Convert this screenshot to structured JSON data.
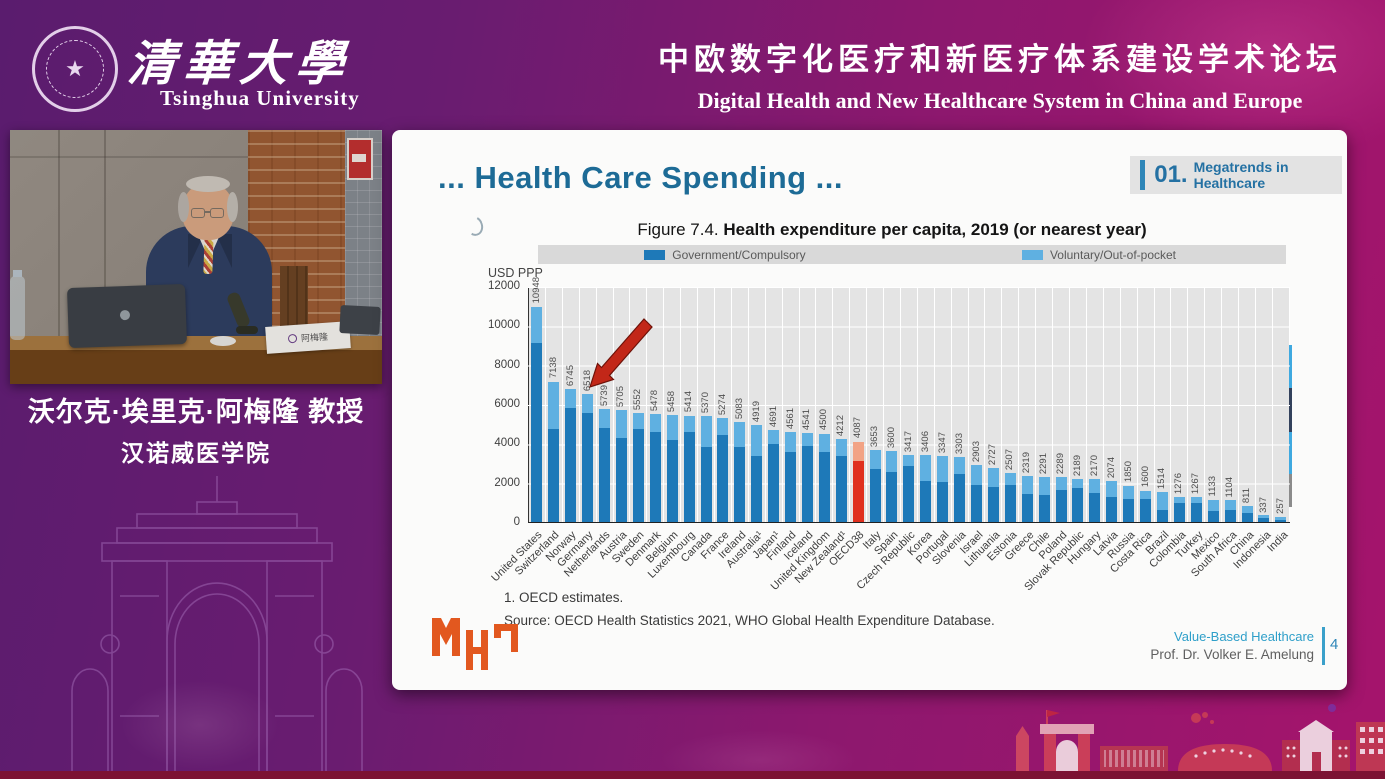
{
  "header": {
    "university_cn": "清華大學",
    "university_en": "Tsinghua University",
    "conference_cn": "中欧数字化医疗和新医疗体系建设学术论坛",
    "conference_en": "Digital Health and New Healthcare System in China and Europe"
  },
  "speaker": {
    "name_line1": "沃尔克·埃里克·阿梅隆 教授",
    "name_line2": "汉诺威医学院",
    "nameplate": "阿梅隆"
  },
  "slide": {
    "title": "... Health Care Spending ...",
    "section_badge": {
      "number": "01.",
      "label": "Megatrends in Healthcare"
    },
    "figure_title_prefix": "Figure 7.4.",
    "figure_title_main": " Health expenditure per capita, 2019 (or nearest year)",
    "footnote": "1. OECD estimates.",
    "source": "Source: OECD Health Statistics 2021, WHO Global Health Expenditure Database.",
    "footer_course": "Value-Based Healthcare",
    "footer_author": "Prof. Dr. Volker E. Amelung",
    "page_number": "4"
  },
  "chart_data": {
    "type": "bar",
    "stacked": true,
    "title": "Figure 7.4. Health expenditure per capita, 2019 (or nearest year)",
    "ylabel": "USD PPP",
    "ylim": [
      0,
      12000
    ],
    "yticks": [
      0,
      2000,
      4000,
      6000,
      8000,
      10000,
      12000
    ],
    "grid": true,
    "legend_position": "top",
    "legend": [
      {
        "label": "Government/Compulsory",
        "color": "#1e79b8"
      },
      {
        "label": "Voluntary/Out-of-pocket",
        "color": "#5fb0e1"
      }
    ],
    "highlight_category": "OECD38",
    "highlight_colors": {
      "government": "#e0301e",
      "voluntary": "#f2a385"
    },
    "annotation": "red arrow pointing at Netherlands bar",
    "categories": [
      "United States",
      "Switzerland",
      "Norway",
      "Germany",
      "Netherlands",
      "Austria",
      "Sweden",
      "Denmark",
      "Belgium",
      "Luxembourg",
      "Canada",
      "France",
      "Ireland",
      "Australia¹",
      "Japan¹",
      "Finland",
      "Iceland",
      "United Kingdom",
      "New Zealand¹",
      "OECD38",
      "Italy",
      "Spain",
      "Czech Republic",
      "Korea",
      "Portugal",
      "Slovenia",
      "Israel",
      "Lithuania",
      "Estonia",
      "Greece",
      "Chile",
      "Poland",
      "Slovak Republic",
      "Hungary",
      "Latvia",
      "Russia",
      "Costa Rica",
      "Brazil",
      "Colombia",
      "Turkey",
      "Mexico",
      "South Africa",
      "China",
      "Indonesia",
      "India"
    ],
    "totals": [
      10948,
      7138,
      6745,
      6518,
      5739,
      5705,
      5552,
      5478,
      5458,
      5414,
      5370,
      5274,
      5083,
      4919,
      4691,
      4561,
      4541,
      4500,
      4212,
      4087,
      3653,
      3600,
      3417,
      3406,
      3347,
      3303,
      2903,
      2727,
      2507,
      2319,
      2291,
      2289,
      2189,
      2170,
      2074,
      1850,
      1600,
      1514,
      1276,
      1267,
      1133,
      1104,
      811,
      337,
      257
    ],
    "series": [
      {
        "name": "Government/Compulsory",
        "values": [
          9100,
          4750,
          5780,
          5550,
          4770,
          4290,
          4730,
          4560,
          4190,
          4560,
          3790,
          4400,
          3810,
          3360,
          3990,
          3560,
          3870,
          3570,
          3350,
          3090,
          2700,
          2560,
          2840,
          2090,
          2030,
          2430,
          1880,
          1790,
          1890,
          1400,
          1380,
          1640,
          1750,
          1480,
          1270,
          1190,
          1180,
          610,
          970,
          990,
          560,
          600,
          450,
          190,
          90
        ]
      },
      {
        "name": "Voluntary/Out-of-pocket",
        "values": [
          1848,
          2388,
          965,
          968,
          969,
          1415,
          822,
          918,
          1268,
          854,
          1580,
          874,
          1273,
          1559,
          701,
          1001,
          671,
          930,
          862,
          997,
          953,
          1040,
          577,
          1316,
          1317,
          873,
          1023,
          937,
          617,
          919,
          911,
          649,
          439,
          690,
          804,
          660,
          420,
          904,
          306,
          277,
          573,
          504,
          361,
          147,
          167
        ]
      }
    ]
  },
  "colors": {
    "accent_blue": "#2576a8",
    "title_teal": "#1d6b96",
    "mhh_orange": "#e2581f"
  }
}
